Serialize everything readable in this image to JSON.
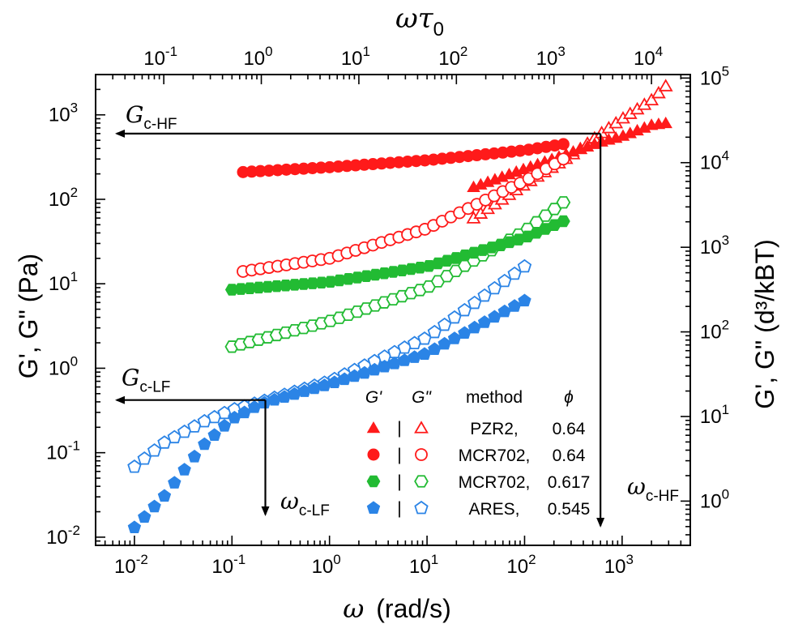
{
  "chart_data": {
    "type": "scatter",
    "scale": "log-log",
    "x_axis": {
      "label_symbol": "ω",
      "label_unit": "(rad/s)",
      "range": [
        0.004,
        5000
      ],
      "ticks": [
        {
          "base": "10",
          "exp": "-2"
        },
        {
          "base": "10",
          "exp": "-1"
        },
        {
          "base": "10",
          "exp": "0"
        },
        {
          "base": "10",
          "exp": "1"
        },
        {
          "base": "10",
          "exp": "2"
        },
        {
          "base": "10",
          "exp": "3"
        }
      ]
    },
    "y_axis": {
      "label_text": "G', G\" (Pa)",
      "range": [
        0.008,
        3000
      ],
      "ticks": [
        {
          "base": "10",
          "exp": "-2"
        },
        {
          "base": "10",
          "exp": "-1"
        },
        {
          "base": "10",
          "exp": "0"
        },
        {
          "base": "10",
          "exp": "1"
        },
        {
          "base": "10",
          "exp": "2"
        },
        {
          "base": "10",
          "exp": "3"
        }
      ]
    },
    "x2_axis": {
      "label_main": "ωτ",
      "label_sub": "0",
      "range": [
        0.02,
        25000
      ],
      "ticks": [
        {
          "base": "10",
          "exp": "-1"
        },
        {
          "base": "10",
          "exp": "0"
        },
        {
          "base": "10",
          "exp": "1"
        },
        {
          "base": "10",
          "exp": "2"
        },
        {
          "base": "10",
          "exp": "3"
        },
        {
          "base": "10",
          "exp": "4"
        }
      ]
    },
    "y2_axis": {
      "label_text": "G', G\" (d³/kBT)",
      "range": [
        0.3,
        110000
      ],
      "ticks": [
        {
          "base": "10",
          "exp": "0"
        },
        {
          "base": "10",
          "exp": "1"
        },
        {
          "base": "10",
          "exp": "2"
        },
        {
          "base": "10",
          "exp": "3"
        },
        {
          "base": "10",
          "exp": "4"
        },
        {
          "base": "10",
          "exp": "5"
        }
      ]
    },
    "annotations": {
      "gc_hf": {
        "symbol": "G",
        "sub": "c-HF",
        "value": 600
      },
      "omega_c_hf": {
        "symbol": "ω",
        "sub": "c-HF",
        "value": 600
      },
      "gc_lf": {
        "symbol": "G",
        "sub": "c-LF",
        "value": 0.42
      },
      "omega_c_lf": {
        "symbol": "ω",
        "sub": "c-LF",
        "value": 0.22
      }
    },
    "legend": {
      "position": "lower-right",
      "header_g1": "G'",
      "header_g2": "G\"",
      "header_method": "method",
      "header_phi": "ϕ",
      "separator": "|",
      "rows": [
        {
          "method": "PZR2,",
          "phi": "0.64",
          "marker": "triangle",
          "color": "#ff1a1a"
        },
        {
          "method": "MCR702,",
          "phi": "0.64",
          "marker": "circle",
          "color": "#ff1a1a"
        },
        {
          "method": "MCR702,",
          "phi": "0.617",
          "marker": "hexagon",
          "color": "#22bb33"
        },
        {
          "method": "ARES,",
          "phi": "0.545",
          "marker": "pentagon",
          "color": "#2b84e6"
        }
      ]
    },
    "series": [
      {
        "key": "pzr2",
        "marker": "triangle",
        "color": "#ff1a1a",
        "x_range": [
          30,
          2800
        ],
        "n": 28,
        "gp": [
          [
            30,
            140
          ],
          [
            100,
            230
          ],
          [
            300,
            360
          ],
          [
            600,
            480
          ],
          [
            1000,
            560
          ],
          [
            2000,
            760
          ],
          [
            2800,
            800
          ]
        ],
        "gpp": [
          [
            30,
            60
          ],
          [
            100,
            150
          ],
          [
            300,
            330
          ],
          [
            600,
            600
          ],
          [
            1000,
            900
          ],
          [
            2000,
            1500
          ],
          [
            2800,
            2200
          ]
        ]
      },
      {
        "key": "mcr064",
        "marker": "circle",
        "color": "#ff1a1a",
        "x_range": [
          0.13,
          250
        ],
        "n": 38,
        "gp": [
          [
            0.13,
            210
          ],
          [
            1,
            240
          ],
          [
            10,
            290
          ],
          [
            100,
            380
          ],
          [
            250,
            450
          ]
        ],
        "gpp": [
          [
            0.13,
            14
          ],
          [
            1,
            20
          ],
          [
            10,
            45
          ],
          [
            100,
            165
          ],
          [
            250,
            300
          ]
        ]
      },
      {
        "key": "mcr0617",
        "marker": "hexagon",
        "color": "#22bb33",
        "x_range": [
          0.1,
          250
        ],
        "n": 38,
        "gp": [
          [
            0.1,
            8.5
          ],
          [
            1,
            10.5
          ],
          [
            10,
            16
          ],
          [
            100,
            35
          ],
          [
            250,
            55
          ]
        ],
        "gpp": [
          [
            0.1,
            1.8
          ],
          [
            1,
            3.6
          ],
          [
            10,
            9
          ],
          [
            100,
            42
          ],
          [
            250,
            92
          ]
        ]
      },
      {
        "key": "ares",
        "marker": "pentagon",
        "color": "#2b84e6",
        "x_range": [
          0.01,
          100
        ],
        "n": 40,
        "gp": [
          [
            0.01,
            0.013
          ],
          [
            0.02,
            0.03
          ],
          [
            0.05,
            0.12
          ],
          [
            0.1,
            0.25
          ],
          [
            0.2,
            0.38
          ],
          [
            1,
            0.65
          ],
          [
            10,
            1.5
          ],
          [
            100,
            6.3
          ]
        ],
        "gpp": [
          [
            0.01,
            0.068
          ],
          [
            0.02,
            0.13
          ],
          [
            0.05,
            0.23
          ],
          [
            0.1,
            0.32
          ],
          [
            0.2,
            0.4
          ],
          [
            1,
            0.7
          ],
          [
            10,
            2.3
          ],
          [
            100,
            16
          ]
        ]
      }
    ]
  }
}
